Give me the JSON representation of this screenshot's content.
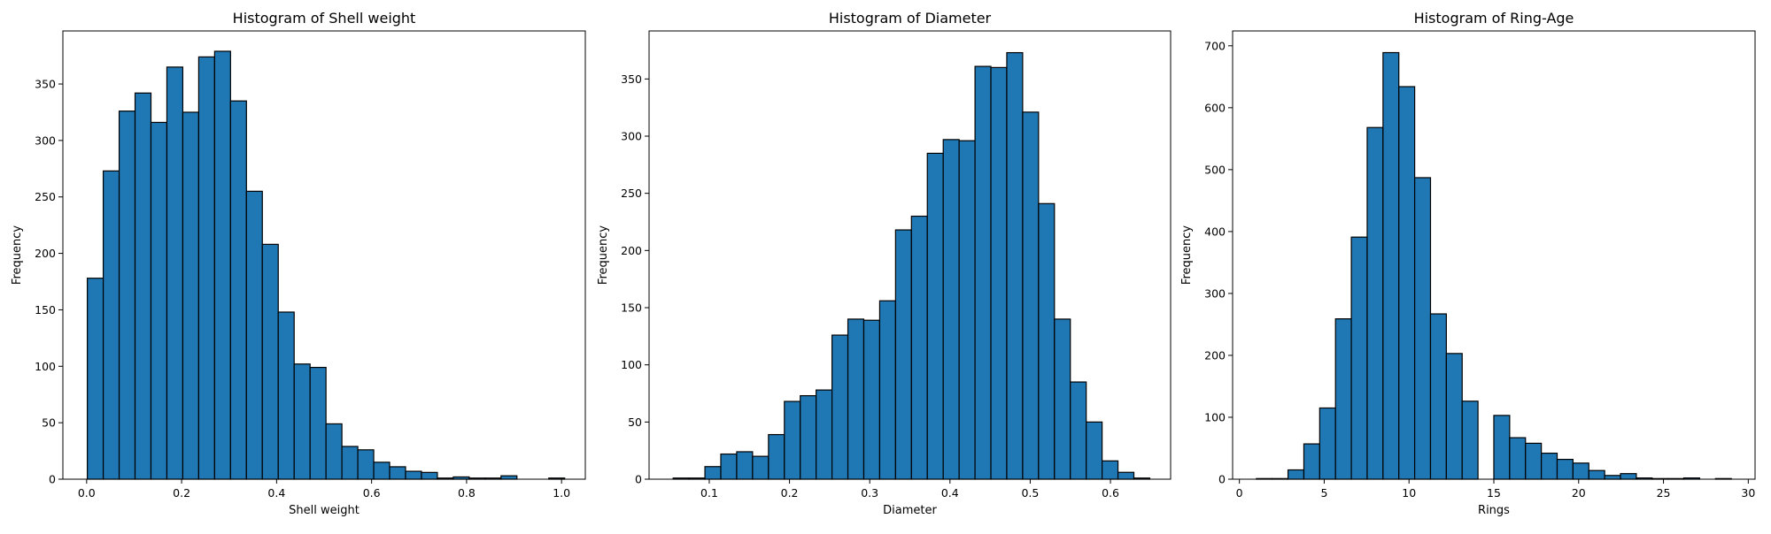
{
  "chart_data": [
    {
      "type": "bar",
      "title": "Histogram of Shell weight",
      "xlabel": "Shell weight",
      "ylabel": "Frequency",
      "xlim": [
        -0.05,
        1.05
      ],
      "ylim": [
        0,
        397
      ],
      "xticks": [
        "0.0",
        "0.2",
        "0.4",
        "0.6",
        "0.8",
        "1.0"
      ],
      "yticks": [
        "0",
        "50",
        "100",
        "150",
        "200",
        "250",
        "300",
        "350"
      ],
      "bin_start": 0.0015,
      "bin_width": 0.0335,
      "values": [
        178,
        273,
        326,
        342,
        316,
        365,
        325,
        374,
        379,
        335,
        255,
        208,
        148,
        102,
        99,
        49,
        29,
        26,
        15,
        11,
        7,
        6,
        1,
        2,
        1,
        1,
        3,
        0,
        0,
        1
      ]
    },
    {
      "type": "bar",
      "title": "Histogram of Diameter",
      "xlabel": "Diameter",
      "ylabel": "Frequency",
      "xlim": [
        0.025,
        0.675
      ],
      "ylim": [
        0,
        392
      ],
      "xticks": [
        "0.1",
        "0.2",
        "0.3",
        "0.4",
        "0.5",
        "0.6"
      ],
      "yticks": [
        "0",
        "50",
        "100",
        "150",
        "200",
        "250",
        "300",
        "350"
      ],
      "bin_start": 0.055,
      "bin_width": 0.0198,
      "values": [
        1,
        1,
        11,
        22,
        24,
        20,
        39,
        68,
        73,
        78,
        126,
        140,
        139,
        156,
        218,
        230,
        285,
        297,
        296,
        361,
        360,
        373,
        321,
        241,
        140,
        85,
        50,
        16,
        6,
        1
      ]
    },
    {
      "type": "bar",
      "title": "Histogram of Ring-Age",
      "xlabel": "Rings",
      "ylabel": "Frequency",
      "xlim": [
        -0.4,
        30.4
      ],
      "ylim": [
        0,
        724
      ],
      "xticks": [
        "0",
        "5",
        "10",
        "15",
        "20",
        "25",
        "30"
      ],
      "yticks": [
        "0",
        "100",
        "200",
        "300",
        "400",
        "500",
        "600",
        "700"
      ],
      "bin_start": 1,
      "bin_width": 0.9333,
      "values": [
        1,
        1,
        15,
        57,
        115,
        259,
        391,
        568,
        689,
        634,
        487,
        267,
        203,
        126,
        0,
        103,
        67,
        58,
        42,
        32,
        26,
        14,
        6,
        9,
        2,
        1,
        1,
        2,
        0,
        1
      ]
    }
  ]
}
